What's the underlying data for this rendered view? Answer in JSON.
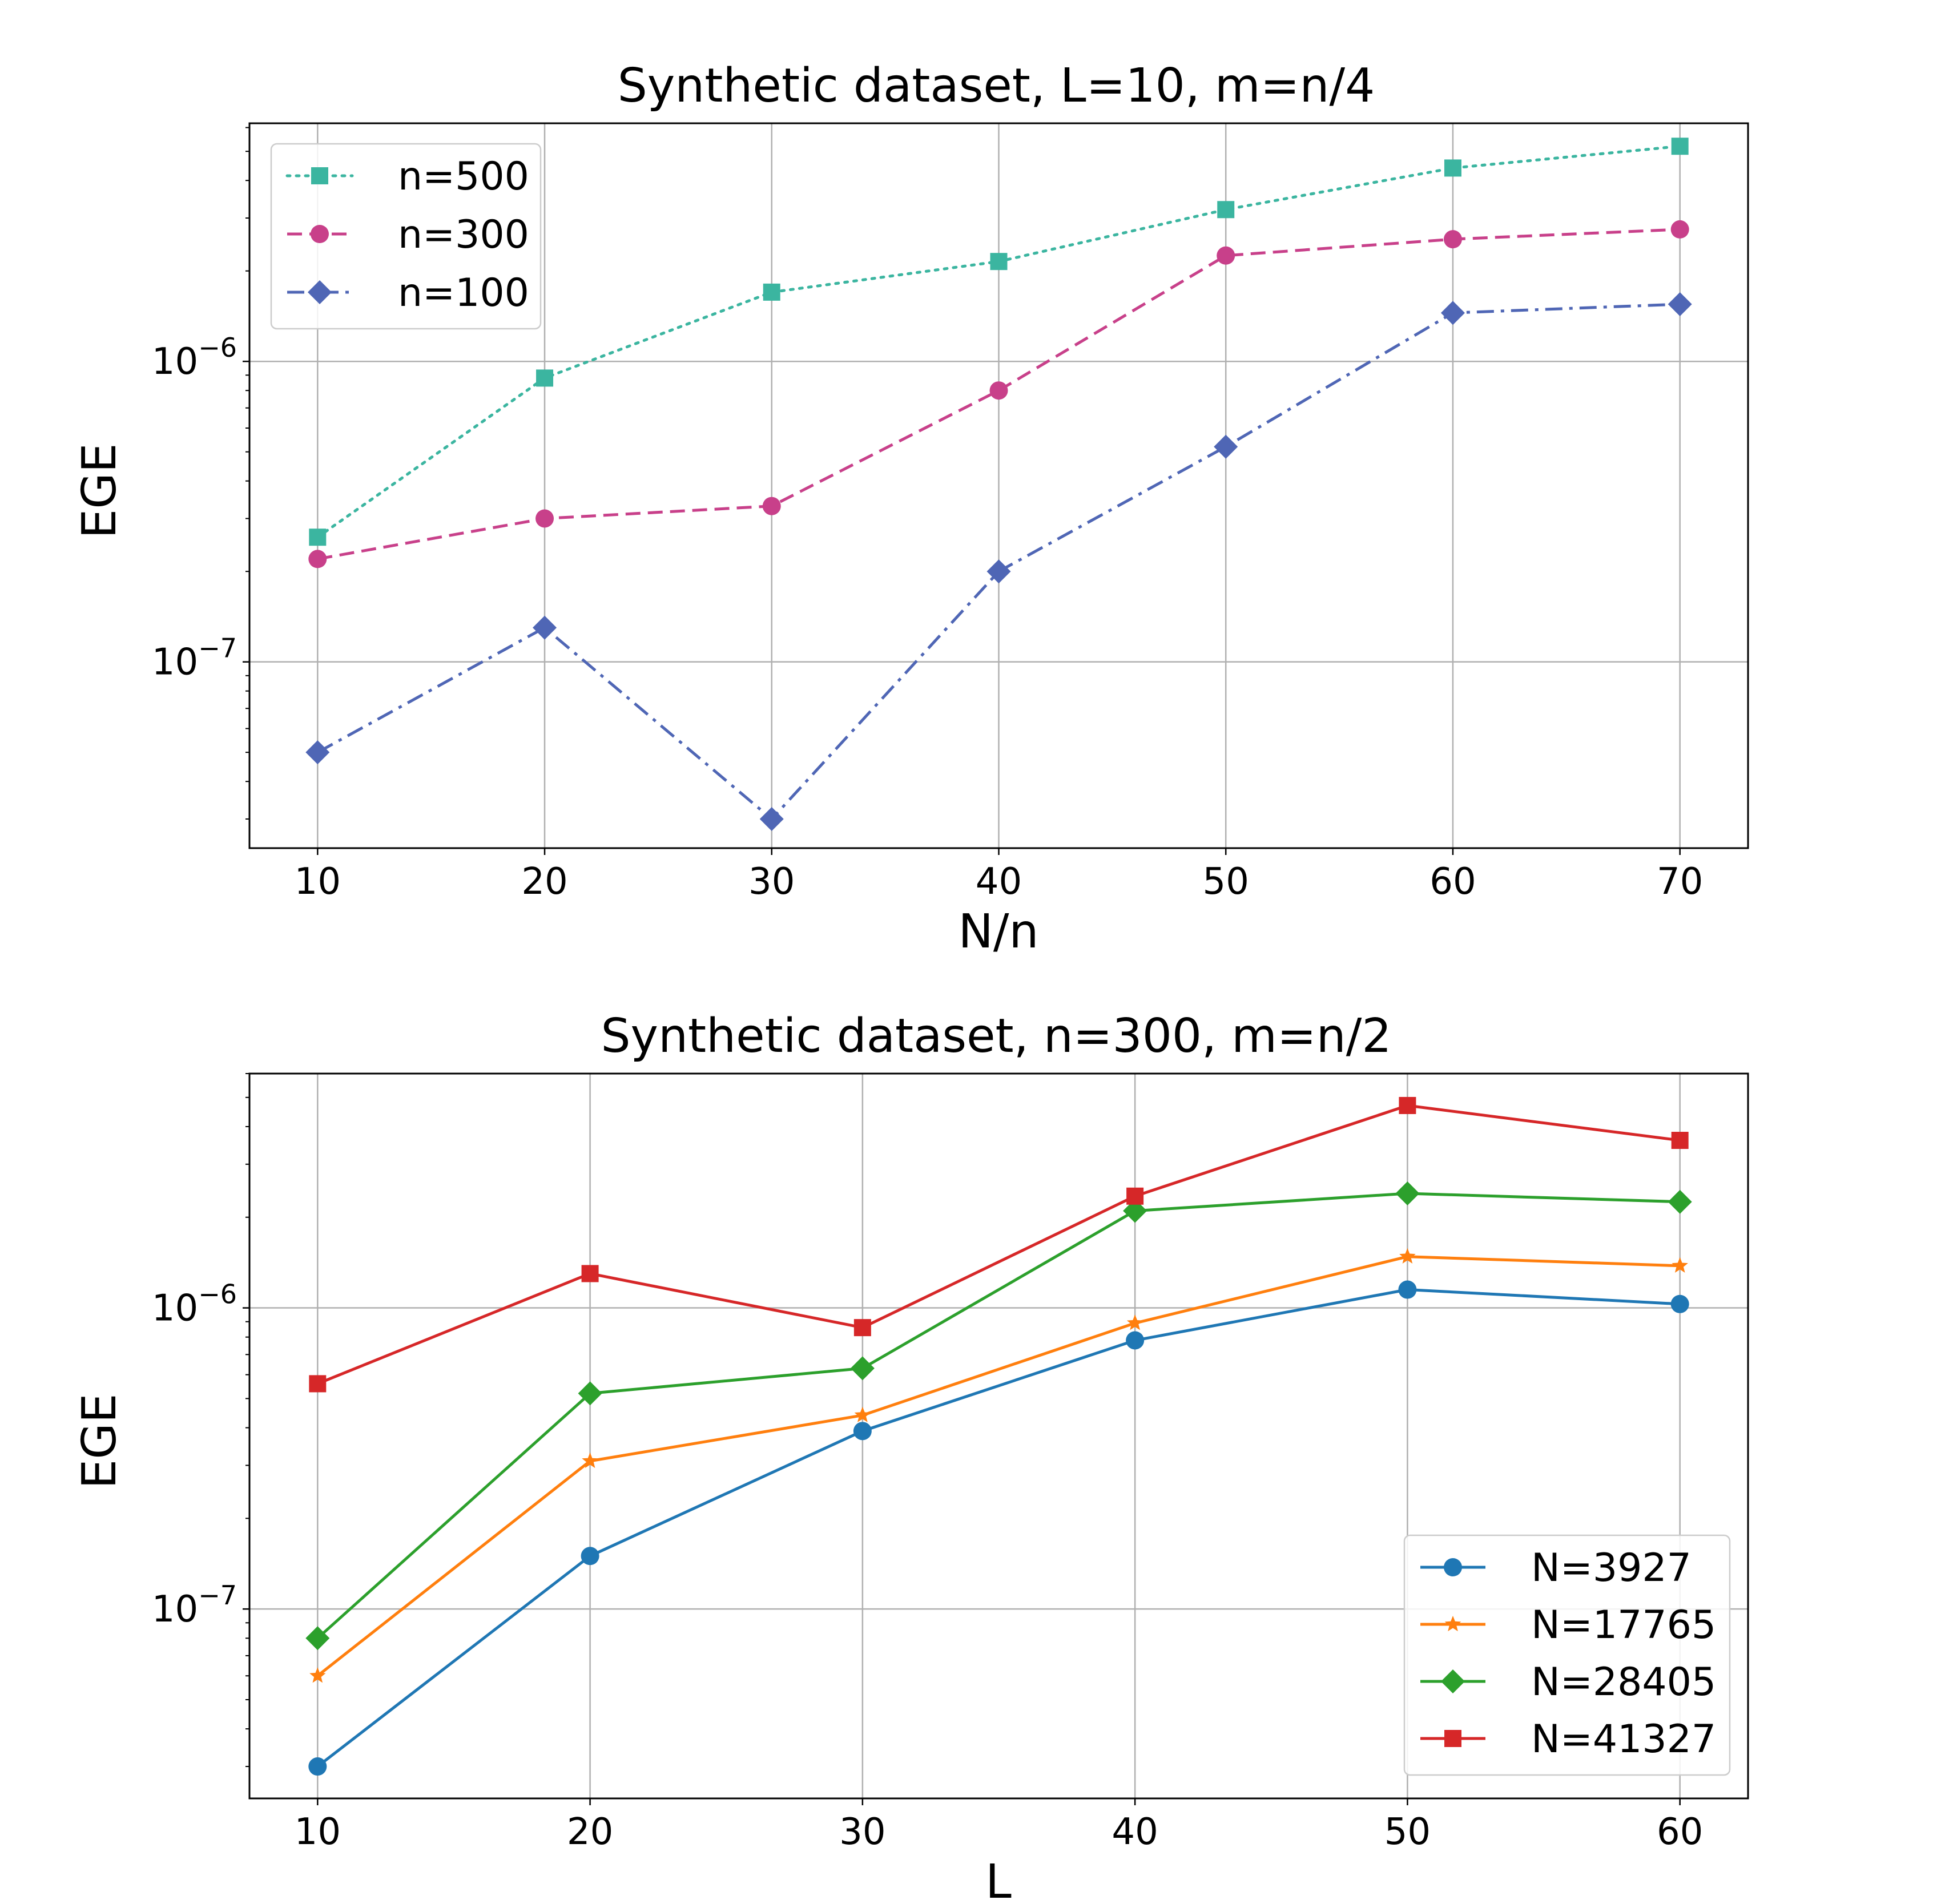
{
  "chart_data": [
    {
      "type": "line",
      "title": "Synthetic dataset, L=10, m=n/4",
      "xlabel": "N/n",
      "ylabel": "EGE",
      "yscale": "log",
      "xlim": [
        7,
        73
      ],
      "ylim": [
        2.4e-08,
        6.2e-06
      ],
      "xticks": [
        10,
        20,
        30,
        40,
        50,
        60,
        70
      ],
      "yticks": [
        {
          "value": 1e-07,
          "base": "10",
          "exp": "−7"
        },
        {
          "value": 1e-06,
          "base": "10",
          "exp": "−6"
        }
      ],
      "grid": true,
      "legend_location": "upper-left",
      "x": [
        10,
        20,
        30,
        40,
        50,
        60,
        70
      ],
      "series": [
        {
          "name": "n=500",
          "color": "#3bb5a0",
          "dash": "dotted",
          "marker": "square",
          "values": [
            2.6e-07,
            8.8e-07,
            1.7e-06,
            2.15e-06,
            3.2e-06,
            4.4e-06,
            5.2e-06
          ]
        },
        {
          "name": "n=300",
          "color": "#c8408a",
          "dash": "dashed",
          "marker": "circle",
          "values": [
            2.2e-07,
            3e-07,
            3.3e-07,
            8e-07,
            2.25e-06,
            2.55e-06,
            2.75e-06
          ]
        },
        {
          "name": "n=100",
          "color": "#4f66b5",
          "dash": "dashdot",
          "marker": "diamond",
          "values": [
            5e-08,
            1.3e-07,
            3e-08,
            2e-07,
            5.2e-07,
            1.45e-06,
            1.55e-06
          ]
        }
      ]
    },
    {
      "type": "line",
      "title": "Synthetic dataset, n=300, m=n/2",
      "xlabel": "L",
      "ylabel": "EGE",
      "yscale": "log",
      "xlim": [
        7.5,
        62.5
      ],
      "ylim": [
        2.35e-08,
        6e-06
      ],
      "xticks": [
        10,
        20,
        30,
        40,
        50,
        60
      ],
      "yticks": [
        {
          "value": 1e-07,
          "base": "10",
          "exp": "−7"
        },
        {
          "value": 1e-06,
          "base": "10",
          "exp": "−6"
        }
      ],
      "grid": true,
      "legend_location": "lower-right",
      "x": [
        10,
        20,
        30,
        40,
        50,
        60
      ],
      "series": [
        {
          "name": "N=3927",
          "color": "#1f77b4",
          "dash": "solid",
          "marker": "circle",
          "values": [
            3e-08,
            1.5e-07,
            3.9e-07,
            7.8e-07,
            1.15e-06,
            1.03e-06
          ]
        },
        {
          "name": "N=17765",
          "color": "#ff7f0e",
          "dash": "solid",
          "marker": "star",
          "values": [
            6e-08,
            3.1e-07,
            4.4e-07,
            8.9e-07,
            1.48e-06,
            1.38e-06
          ]
        },
        {
          "name": "N=28405",
          "color": "#2ca02c",
          "dash": "solid",
          "marker": "diamond",
          "values": [
            8e-08,
            5.2e-07,
            6.3e-07,
            2.1e-06,
            2.4e-06,
            2.25e-06
          ]
        },
        {
          "name": "N=41327",
          "color": "#d62728",
          "dash": "solid",
          "marker": "square",
          "values": [
            5.6e-07,
            1.3e-06,
            8.6e-07,
            2.35e-06,
            4.7e-06,
            3.6e-06
          ]
        }
      ]
    }
  ]
}
